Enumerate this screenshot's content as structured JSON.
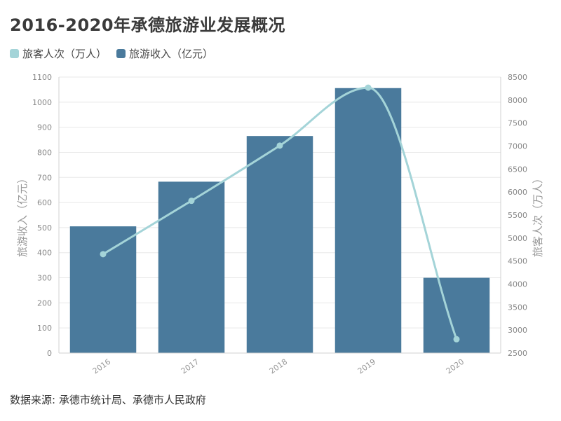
{
  "title": "2016-2020年承德旅游业发展概况",
  "source": "数据来源: 承德市统计局、承德市人民政府",
  "colors": {
    "bar": "#4a7a9c",
    "line": "#a4d4d8"
  },
  "chart_data": {
    "type": "bar",
    "categories": [
      "2016",
      "2017",
      "2018",
      "2019",
      "2020"
    ],
    "series": [
      {
        "name": "旅游收入（亿元）",
        "type": "bar",
        "axis": "left",
        "values": [
          505,
          683,
          865,
          1056,
          300
        ]
      },
      {
        "name": "旅客人次（万人）",
        "type": "line",
        "axis": "right",
        "smooth": true,
        "values": [
          4650,
          5810,
          7010,
          8270,
          2800
        ]
      }
    ],
    "legend": [
      "旅客人次（万人）",
      "旅游收入（亿元）"
    ],
    "legend_position": "top-left",
    "ylabel": "旅游收入（亿元）",
    "ylabel_right": "旅客人次（万人）",
    "ylim": [
      0,
      1100
    ],
    "ylim_right": [
      2500,
      8500
    ],
    "yticks": [
      "0",
      "100",
      "200",
      "300",
      "400",
      "500",
      "600",
      "700",
      "800",
      "900",
      "1000",
      "1100"
    ],
    "yticks_right": [
      "2500",
      "3000",
      "3500",
      "4000",
      "4500",
      "5000",
      "5500",
      "6000",
      "6500",
      "7000",
      "7500",
      "8000",
      "8500"
    ],
    "grid": true
  }
}
